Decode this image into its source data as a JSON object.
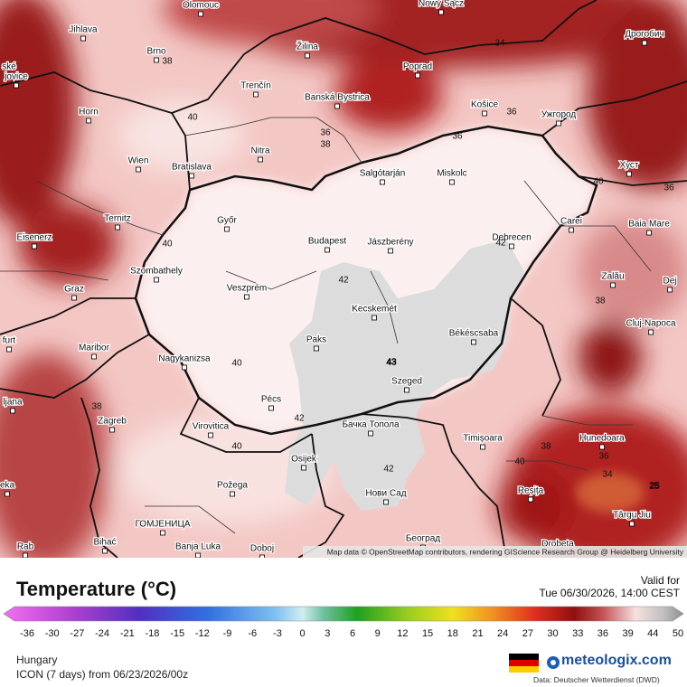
{
  "map": {
    "places": [
      "Olomouc",
      "Nowy Sącz",
      "Jihlava",
      "Brno",
      "Žilina",
      "Дрогобич",
      "ské",
      "jovice",
      "Poprad",
      "Trenčín",
      "Banská Bystrica",
      "Horn",
      "Košice",
      "Ужгород",
      "Nitra",
      "Wien",
      "Bratislava",
      "Salgótarján",
      "Miskolc",
      "Хуст",
      "Ternitz",
      "Győr",
      "Carei",
      "Baia Mare",
      "Eisenerz",
      "Budapest",
      "Jászberény",
      "Debrecen",
      "Szombathely",
      "Zalău",
      "Graz",
      "Veszprém",
      "Dej",
      "Kecskemét",
      "Cluj-Napoca",
      "Békéscsaba",
      "Paks",
      "furt",
      "Maribor",
      "Nagykanizsa",
      "Szeged",
      "ljana",
      "Pécs",
      "Zagreb",
      "Бачка Топола",
      "Virovitica",
      "Timișoara",
      "Hunedoara",
      "Osijek",
      "eka",
      "Reșița",
      "Požega",
      "Нови Сад",
      "ГОМЈЕНИЦА",
      "Târgu Jiu",
      "Rab",
      "Bihać",
      "Banja Luka",
      "Doboj",
      "Београд",
      "Drobeta"
    ],
    "contour_labels": [
      38,
      40,
      36,
      38,
      36,
      34,
      36,
      40,
      36,
      40,
      42,
      42,
      43,
      40,
      38,
      42,
      40,
      42,
      38,
      40,
      38,
      36,
      34,
      25
    ],
    "attribution": "Map data © OpenStreetMap contributors, rendering GIScience Research Group @ Heidelberg University"
  },
  "legend": {
    "title": "Temperature (°C)",
    "valid_label": "Valid for",
    "valid_time": "Tue 06/30/2026, 14:00 CEST",
    "ticks": [
      -36,
      -30,
      -27,
      -24,
      -21,
      -18,
      -15,
      -12,
      -9,
      -6,
      -3,
      0,
      3,
      6,
      9,
      12,
      15,
      18,
      21,
      24,
      27,
      30,
      33,
      36,
      39,
      44,
      50
    ]
  },
  "footer": {
    "region": "Hungary",
    "model": "ICON (7 days) from 06/23/2026/00z",
    "brand": "meteologix.com",
    "source": "Data: Deutscher Wetterdienst (DWD)"
  }
}
